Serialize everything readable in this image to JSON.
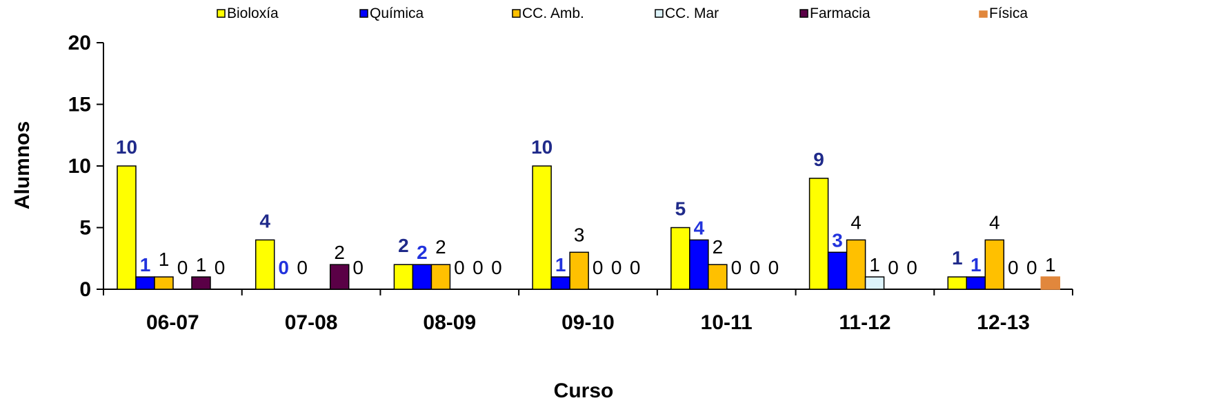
{
  "chart_data": {
    "type": "bar",
    "title": "",
    "xlabel": "Curso",
    "ylabel": "Alumnos",
    "ylim": [
      0,
      20
    ],
    "yticks": [
      0,
      5,
      10,
      15,
      20
    ],
    "grid": false,
    "legend_position": "top",
    "categories": [
      "06-07",
      "07-08",
      "08-09",
      "09-10",
      "10-11",
      "11-12",
      "12-13"
    ],
    "series": [
      {
        "name": "Bioloxía",
        "color": "#FFFF00",
        "values": [
          10,
          4,
          2,
          10,
          5,
          9,
          1
        ]
      },
      {
        "name": "Química",
        "color": "#0000FF",
        "values": [
          1,
          0,
          2,
          1,
          4,
          3,
          1
        ]
      },
      {
        "name": "CC. Amb.",
        "color": "#FFC000",
        "values": [
          1,
          0,
          2,
          3,
          2,
          4,
          4
        ]
      },
      {
        "name": "CC. Mar",
        "color": "#DDF3FA",
        "values": [
          0,
          null,
          0,
          0,
          0,
          1,
          0
        ]
      },
      {
        "name": "Farmacia",
        "color": "#5A0046",
        "values": [
          1,
          2,
          0,
          0,
          0,
          0,
          0
        ]
      },
      {
        "name": "Física",
        "color": "#E1873C",
        "values": [
          0,
          0,
          0,
          0,
          0,
          0,
          1
        ]
      }
    ]
  }
}
